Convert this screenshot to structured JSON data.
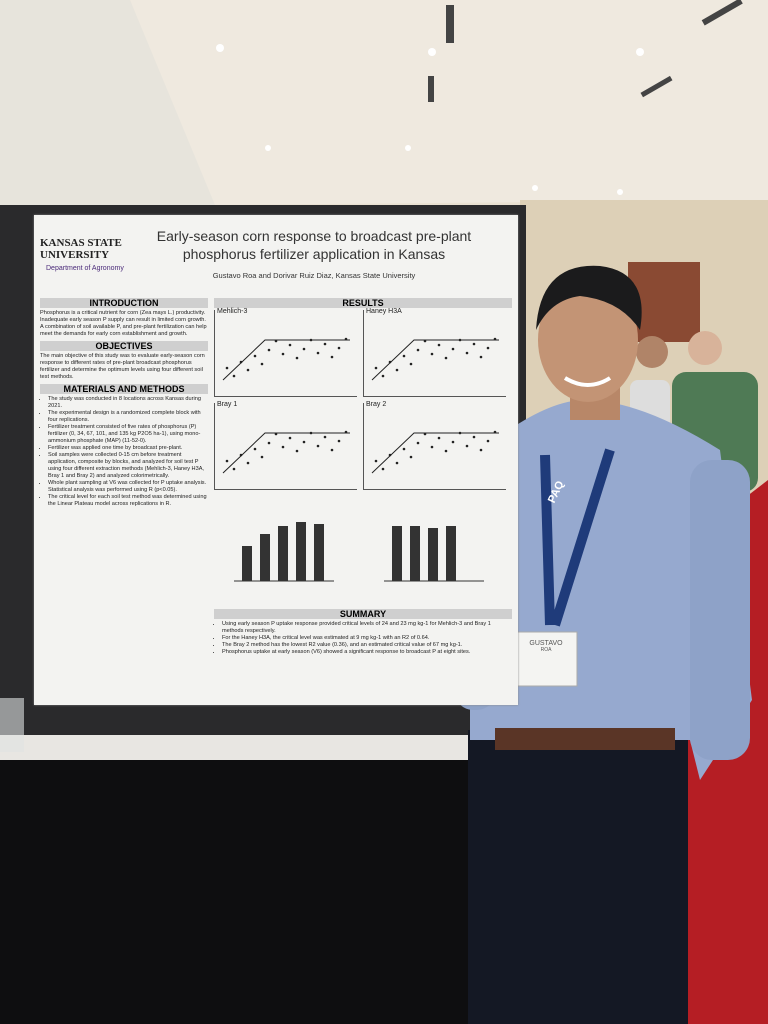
{
  "header": {
    "university": "Kansas State University",
    "department": "Department of Agronomy",
    "title": "Early-season corn response to broadcast pre-plant phosphorus fertilizer application in Kansas",
    "authors": "Gustavo Roa and Dorivar Ruiz Diaz, Kansas State University"
  },
  "sections": [
    {
      "heading": "INTRODUCTION",
      "text": "Phosphorus is a critical nutrient for corn (Zea mays L.) productivity. Inadequate early season P supply can result in limited corn growth. A combination of soil available P, and pre-plant fertilization can help meet the demands for early corn establishment and growth."
    },
    {
      "heading": "OBJECTIVES",
      "text": "The main objective of this study was to evaluate early-season corn response to different rates of pre-plant broadcast phosphorus fertilizer and determine the optimum levels using four different soil test methods."
    },
    {
      "heading": "MATERIALS AND METHODS",
      "items": [
        "The study was conducted in 8 locations across Kansas during 2021.",
        "The experimental design is a randomized complete block with four replications.",
        "Fertilizer treatment consisted of five rates of phosphorus (P) fertilizer (0, 34, 67, 101, and 135 kg P2O5 ha-1), using mono-ammonium phosphate (MAP) (11-52-0).",
        "Fertilizer was applied one time by broadcast pre-plant.",
        "Soil samples were collected 0-15 cm before treatment application, composite by blocks, and analyzed for soil test P using four different extraction methods (Mehlich-3, Haney H3A, Bray 1 and Bray 2) and analyzed colorimetrically.",
        "Whole plant sampling at V6 was collected for P uptake analysis. Statistical analysis was performed using R (p<0.05).",
        "The critical level for each soil test method was determined using the Linear Plateau model across replications in R."
      ]
    }
  ],
  "results": {
    "heading": "RESULTS",
    "panels": [
      "Mehlich-3",
      "Haney H3A",
      "Bray 1",
      "Bray 2"
    ]
  },
  "summary": {
    "heading": "SUMMARY",
    "items": [
      "Using early season P uptake response provided critical levels of 24 and 23 mg kg-1 for Mehlich-3 and Bray 1 methods respectively.",
      "For the Haney H3A, the critical level was estimated at 9 mg kg-1 with an R2 of 0.64.",
      "The Bray 2 method has the lowest R2 value (0.36), and an estimated critical value of 67 mg kg-1.",
      "Phosphorus uptake at early season (V6) showed a significant response to broadcast P at eight sites."
    ]
  },
  "badge": {
    "name": "GUSTAVO",
    "surname": "ROA"
  },
  "lanyard": "PAQ"
}
